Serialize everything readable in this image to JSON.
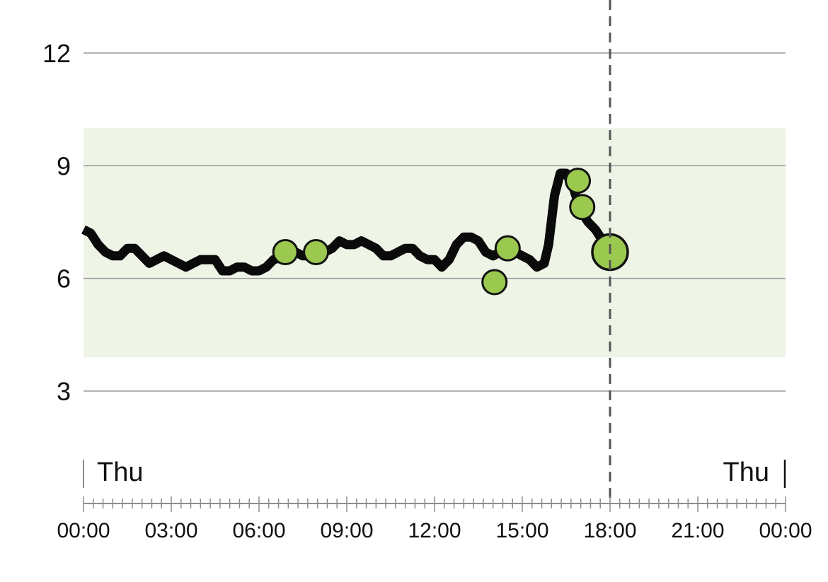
{
  "chart_data": {
    "type": "line",
    "title": "",
    "xlabel": "",
    "ylabel": "",
    "ylim": [
      0,
      13.2
    ],
    "xlim": [
      "00:00",
      "24:00"
    ],
    "y_ticks": [
      3,
      6,
      9,
      12
    ],
    "y_tick_labels": [
      "3",
      "6",
      "9",
      "12"
    ],
    "x_tick_labels": [
      "00:00",
      "03:00",
      "06:00",
      "09:00",
      "12:00",
      "15:00",
      "18:00",
      "21:00",
      "00:00"
    ],
    "day_labels": {
      "start": "Thu",
      "end": "Thu"
    },
    "target_range": [
      3.9,
      10.0
    ],
    "current_time": "18:00",
    "colors": {
      "line": "#0a0a0a",
      "target_band": "#eef4e6",
      "marker_fill": "#9bc94f",
      "marker_stroke": "#111111",
      "grid": "#9a9a9a",
      "axis": "#8c8c8c",
      "now_line": "#555555"
    },
    "grid": true,
    "legend": "none",
    "series": [
      {
        "kind": "trend",
        "points": [
          [
            0.0,
            7.3
          ],
          [
            0.25,
            7.2
          ],
          [
            0.5,
            6.9
          ],
          [
            0.75,
            6.7
          ],
          [
            1.0,
            6.6
          ],
          [
            1.25,
            6.6
          ],
          [
            1.5,
            6.8
          ],
          [
            1.75,
            6.8
          ],
          [
            2.0,
            6.6
          ],
          [
            2.25,
            6.4
          ],
          [
            2.5,
            6.5
          ],
          [
            2.75,
            6.6
          ],
          [
            3.0,
            6.5
          ],
          [
            3.25,
            6.4
          ],
          [
            3.5,
            6.3
          ],
          [
            3.75,
            6.4
          ],
          [
            4.0,
            6.5
          ],
          [
            4.25,
            6.5
          ],
          [
            4.5,
            6.5
          ],
          [
            4.75,
            6.2
          ],
          [
            5.0,
            6.2
          ],
          [
            5.25,
            6.3
          ],
          [
            5.5,
            6.3
          ],
          [
            5.75,
            6.2
          ],
          [
            6.0,
            6.2
          ],
          [
            6.25,
            6.3
          ],
          [
            6.5,
            6.5
          ],
          [
            7.0,
            6.6
          ],
          [
            7.25,
            6.7
          ],
          [
            7.5,
            6.6
          ],
          [
            7.75,
            6.6
          ],
          [
            8.0,
            6.6
          ],
          [
            8.25,
            6.7
          ],
          [
            8.5,
            6.8
          ],
          [
            8.75,
            7.0
          ],
          [
            9.0,
            6.9
          ],
          [
            9.25,
            6.9
          ],
          [
            9.5,
            7.0
          ],
          [
            9.75,
            6.9
          ],
          [
            10.0,
            6.8
          ],
          [
            10.25,
            6.6
          ],
          [
            10.5,
            6.6
          ],
          [
            10.75,
            6.7
          ],
          [
            11.0,
            6.8
          ],
          [
            11.25,
            6.8
          ],
          [
            11.5,
            6.6
          ],
          [
            11.75,
            6.5
          ],
          [
            12.0,
            6.5
          ],
          [
            12.25,
            6.3
          ],
          [
            12.5,
            6.5
          ],
          [
            12.75,
            6.9
          ],
          [
            13.0,
            7.1
          ],
          [
            13.25,
            7.1
          ],
          [
            13.5,
            7.0
          ],
          [
            13.75,
            6.7
          ],
          [
            14.0,
            6.6
          ],
          [
            14.25,
            6.7
          ],
          [
            14.5,
            6.8
          ],
          [
            14.75,
            6.7
          ],
          [
            15.0,
            6.6
          ],
          [
            15.25,
            6.5
          ],
          [
            15.5,
            6.3
          ],
          [
            15.75,
            6.4
          ],
          [
            15.9,
            6.9
          ],
          [
            16.1,
            8.2
          ],
          [
            16.3,
            8.8
          ],
          [
            16.5,
            8.8
          ],
          [
            16.75,
            8.4
          ],
          [
            17.0,
            7.8
          ],
          [
            17.25,
            7.5
          ],
          [
            17.5,
            7.3
          ],
          [
            17.75,
            7.0
          ]
        ]
      },
      {
        "kind": "readings",
        "points": [
          {
            "x": 6.9,
            "y": 6.7
          },
          {
            "x": 7.95,
            "y": 6.7
          },
          {
            "x": 14.05,
            "y": 5.9
          },
          {
            "x": 14.5,
            "y": 6.8
          },
          {
            "x": 16.9,
            "y": 8.6
          },
          {
            "x": 17.05,
            "y": 7.9
          },
          {
            "x": 18.0,
            "y": 6.7,
            "current": true
          }
        ]
      }
    ]
  }
}
